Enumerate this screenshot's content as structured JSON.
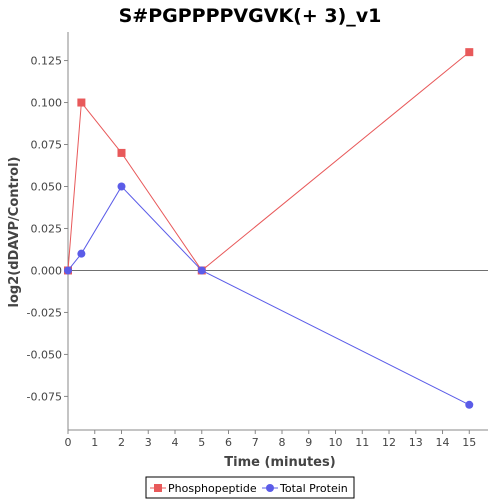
{
  "chart_data": {
    "type": "line",
    "title": "S#PGPPPPVGVK(+ 3)_v1",
    "xlabel": "Time (minutes)",
    "ylabel": "log2(dDAVP/Control)",
    "xlim": [
      0,
      15.7
    ],
    "ylim": [
      -0.095,
      0.142
    ],
    "x_ticks": [
      0,
      1,
      2,
      3,
      4,
      5,
      6,
      7,
      8,
      9,
      10,
      11,
      12,
      13,
      14,
      15
    ],
    "x_tick_labels": [
      "0",
      "1",
      "2",
      "3",
      "4",
      "5",
      "6",
      "7",
      "8",
      "9",
      "10",
      "11",
      "12",
      "13",
      "14",
      "15"
    ],
    "y_ticks": [
      -0.075,
      -0.05,
      -0.025,
      0,
      0.025,
      0.05,
      0.075,
      0.1,
      0.125
    ],
    "y_tick_labels": [
      "-0.075",
      "-0.050",
      "-0.025",
      "0.000",
      "0.025",
      "0.050",
      "0.075",
      "0.100",
      "0.125"
    ],
    "grid": false,
    "legend_position": "bottom",
    "series": [
      {
        "name": "Phosphopeptide",
        "color": "#e8595a",
        "marker": "square",
        "x": [
          0,
          0.5,
          2,
          5,
          15
        ],
        "y": [
          0,
          0.1,
          0.07,
          0,
          0.13
        ]
      },
      {
        "name": "Total Protein",
        "color": "#5b5ce8",
        "marker": "circle",
        "x": [
          0,
          0.5,
          2,
          5,
          15
        ],
        "y": [
          0,
          0.01,
          0.05,
          0,
          -0.08
        ]
      }
    ]
  }
}
